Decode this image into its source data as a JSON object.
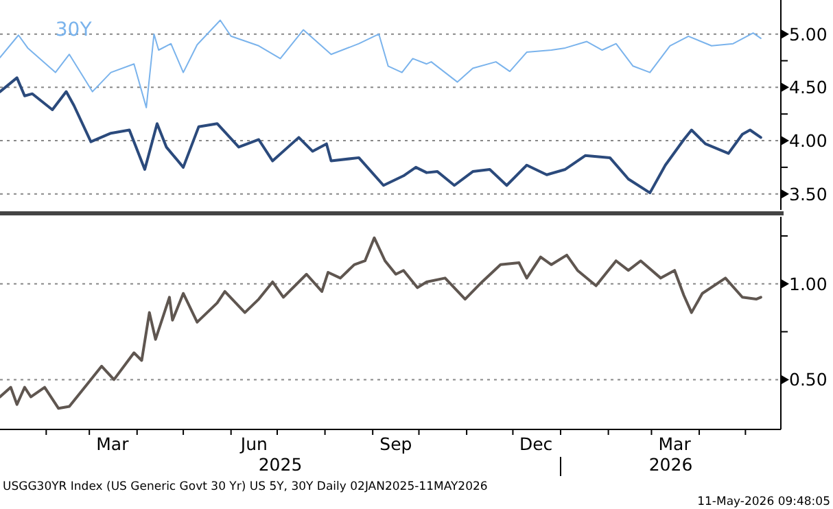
{
  "chart_data": [
    {
      "type": "line",
      "xlim": [
        "2025-01-02",
        "2026-05-24"
      ],
      "ylim": [
        3.35,
        5.32
      ],
      "yticks": [
        {
          "value": 3.5,
          "label": "3.50"
        },
        {
          "value": 3.75,
          "label": null
        },
        {
          "value": 4,
          "label": "4.00"
        },
        {
          "value": 4.25,
          "label": null
        },
        {
          "value": 4.5,
          "label": "4.50"
        },
        {
          "value": 4.75,
          "label": null
        },
        {
          "value": 5,
          "label": "5.00"
        }
      ],
      "tick_labels": "y",
      "grid": "y",
      "legend": false,
      "line_style": "solid",
      "marker": "none",
      "series": [
        {
          "name": "30Y",
          "color": "#7ab3ec",
          "x": [
            "2025-01-02",
            "2025-01-14",
            "2025-01-20",
            "2025-02-07",
            "2025-02-16",
            "2025-03-03",
            "2025-03-15",
            "2025-03-30",
            "2025-04-07",
            "2025-04-12",
            "2025-04-15",
            "2025-04-23",
            "2025-05-01",
            "2025-05-10",
            "2025-05-25",
            "2025-06-01",
            "2025-06-19",
            "2025-07-03",
            "2025-07-18",
            "2025-08-05",
            "2025-08-23",
            "2025-09-05",
            "2025-09-11",
            "2025-09-20",
            "2025-09-27",
            "2025-10-06",
            "2025-10-09",
            "2025-10-26",
            "2025-11-05",
            "2025-11-20",
            "2025-11-29",
            "2025-12-10",
            "2025-12-26",
            "2026-01-04",
            "2026-01-18",
            "2026-01-28",
            "2026-02-06",
            "2026-02-17",
            "2026-02-28",
            "2026-03-13",
            "2026-03-25",
            "2026-04-09",
            "2026-04-23",
            "2026-05-06",
            "2026-05-11"
          ],
          "values": [
            4.78,
            4.99,
            4.87,
            4.64,
            4.81,
            4.46,
            4.64,
            4.72,
            4.31,
            5.0,
            4.85,
            4.91,
            4.64,
            4.9,
            5.13,
            4.98,
            4.89,
            4.77,
            5.04,
            4.81,
            4.91,
            5.0,
            4.7,
            4.64,
            4.77,
            4.72,
            4.74,
            4.55,
            4.68,
            4.74,
            4.65,
            4.83,
            4.85,
            4.87,
            4.93,
            4.85,
            4.91,
            4.7,
            4.64,
            4.89,
            4.98,
            4.89,
            4.91,
            5.01,
            4.96
          ]
        },
        {
          "color": "#2b4a7c",
          "x": [
            "2025-01-02",
            "2025-01-13",
            "2025-01-18",
            "2025-01-23",
            "2025-02-05",
            "2025-02-14",
            "2025-02-19",
            "2025-03-02",
            "2025-03-15",
            "2025-03-27",
            "2025-04-06",
            "2025-04-14",
            "2025-04-20",
            "2025-05-01",
            "2025-05-11",
            "2025-05-23",
            "2025-06-06",
            "2025-06-19",
            "2025-06-28",
            "2025-07-15",
            "2025-07-24",
            "2025-08-02",
            "2025-08-05",
            "2025-08-23",
            "2025-09-08",
            "2025-09-21",
            "2025-09-29",
            "2025-10-06",
            "2025-10-13",
            "2025-10-24",
            "2025-11-05",
            "2025-11-16",
            "2025-11-27",
            "2025-12-10",
            "2025-12-23",
            "2026-01-04",
            "2026-01-17",
            "2026-02-02",
            "2026-02-14",
            "2026-02-28",
            "2026-03-10",
            "2026-03-22",
            "2026-03-27",
            "2026-04-05",
            "2026-04-20",
            "2026-04-29",
            "2026-05-04",
            "2026-05-11"
          ],
          "values": [
            4.46,
            4.59,
            4.42,
            4.44,
            4.29,
            4.46,
            4.33,
            3.99,
            4.07,
            4.1,
            3.73,
            4.16,
            3.94,
            3.75,
            4.13,
            4.16,
            3.94,
            4.01,
            3.81,
            4.03,
            3.9,
            3.97,
            3.81,
            3.84,
            3.58,
            3.67,
            3.75,
            3.7,
            3.71,
            3.58,
            3.71,
            3.73,
            3.58,
            3.77,
            3.68,
            3.73,
            3.86,
            3.84,
            3.64,
            3.51,
            3.77,
            4.01,
            4.1,
            3.97,
            3.88,
            4.06,
            4.1,
            4.03
          ]
        }
      ]
    },
    {
      "type": "line",
      "xlim": [
        "2025-01-02",
        "2026-05-24"
      ],
      "ylim": [
        0.24,
        1.35
      ],
      "yticks": [
        {
          "value": 0.5,
          "label": "0.50"
        },
        {
          "value": 0.75,
          "label": null
        },
        {
          "value": 1,
          "label": "1.00"
        },
        {
          "value": 1.25,
          "label": null
        }
      ],
      "grid": "y",
      "legend": false,
      "line_style": "solid",
      "marker": "none",
      "xticks": [
        {
          "value": "2025-02-01",
          "label": null
        },
        {
          "value": "2025-03-01",
          "label": null
        },
        {
          "value": "2025-03-16",
          "label": "Mar"
        },
        {
          "value": "2025-04-01",
          "label": null
        },
        {
          "value": "2025-05-01",
          "label": null
        },
        {
          "value": "2025-06-01",
          "label": null
        },
        {
          "value": "2025-06-16",
          "label": "Jun"
        },
        {
          "value": "2025-07-01",
          "label": null
        },
        {
          "value": "2025-08-01",
          "label": null
        },
        {
          "value": "2025-09-01",
          "label": null
        },
        {
          "value": "2025-09-16",
          "label": "Sep"
        },
        {
          "value": "2025-10-01",
          "label": null
        },
        {
          "value": "2025-11-01",
          "label": null
        },
        {
          "value": "2025-12-01",
          "label": null
        },
        {
          "value": "2025-12-16",
          "label": "Dec"
        },
        {
          "value": "2026-01-01",
          "label": null
        },
        {
          "value": "2026-02-01",
          "label": null
        },
        {
          "value": "2026-03-01",
          "label": null
        },
        {
          "value": "2026-03-16",
          "label": "Mar"
        },
        {
          "value": "2026-04-01",
          "label": null
        },
        {
          "value": "2026-05-01",
          "label": null
        }
      ],
      "annotations": [
        "2025",
        "2026",
        "USGG30YR Index (US Generic Govt 30 Yr) US 5Y, 30Y Daily 02JAN2025-11MAY2026",
        "11-May-2026 09:48:05"
      ],
      "series": [
        {
          "color": "#5f5650",
          "x": [
            "2025-01-02",
            "2025-01-09",
            "2025-01-13",
            "2025-01-18",
            "2025-01-22",
            "2025-01-31",
            "2025-02-09",
            "2025-02-16",
            "2025-02-28",
            "2025-03-09",
            "2025-03-17",
            "2025-03-30",
            "2025-04-04",
            "2025-04-09",
            "2025-04-13",
            "2025-04-22",
            "2025-04-24",
            "2025-05-01",
            "2025-05-10",
            "2025-05-23",
            "2025-05-28",
            "2025-06-10",
            "2025-06-19",
            "2025-06-28",
            "2025-07-05",
            "2025-07-20",
            "2025-07-30",
            "2025-08-03",
            "2025-08-11",
            "2025-08-20",
            "2025-08-27",
            "2025-09-02",
            "2025-09-09",
            "2025-09-16",
            "2025-09-21",
            "2025-09-30",
            "2025-10-06",
            "2025-10-18",
            "2025-10-31",
            "2025-11-11",
            "2025-11-23",
            "2025-12-05",
            "2025-12-10",
            "2025-12-19",
            "2025-12-26",
            "2026-01-05",
            "2026-01-12",
            "2026-01-24",
            "2026-02-06",
            "2026-02-14",
            "2026-02-22",
            "2026-03-07",
            "2026-03-16",
            "2026-03-22",
            "2026-03-27",
            "2026-04-03",
            "2026-04-18",
            "2026-04-29",
            "2026-05-08",
            "2026-05-11"
          ],
          "values": [
            0.41,
            0.46,
            0.37,
            0.46,
            0.41,
            0.46,
            0.35,
            0.36,
            0.48,
            0.57,
            0.5,
            0.64,
            0.6,
            0.85,
            0.71,
            0.93,
            0.81,
            0.95,
            0.8,
            0.9,
            0.96,
            0.85,
            0.92,
            1.01,
            0.93,
            1.05,
            0.96,
            1.06,
            1.03,
            1.1,
            1.12,
            1.24,
            1.12,
            1.05,
            1.07,
            0.98,
            1.01,
            1.03,
            0.92,
            1.01,
            1.1,
            1.11,
            1.03,
            1.14,
            1.1,
            1.15,
            1.07,
            0.99,
            1.12,
            1.07,
            1.12,
            1.03,
            1.07,
            0.94,
            0.85,
            0.95,
            1.03,
            0.93,
            0.92,
            0.93
          ]
        }
      ]
    }
  ]
}
